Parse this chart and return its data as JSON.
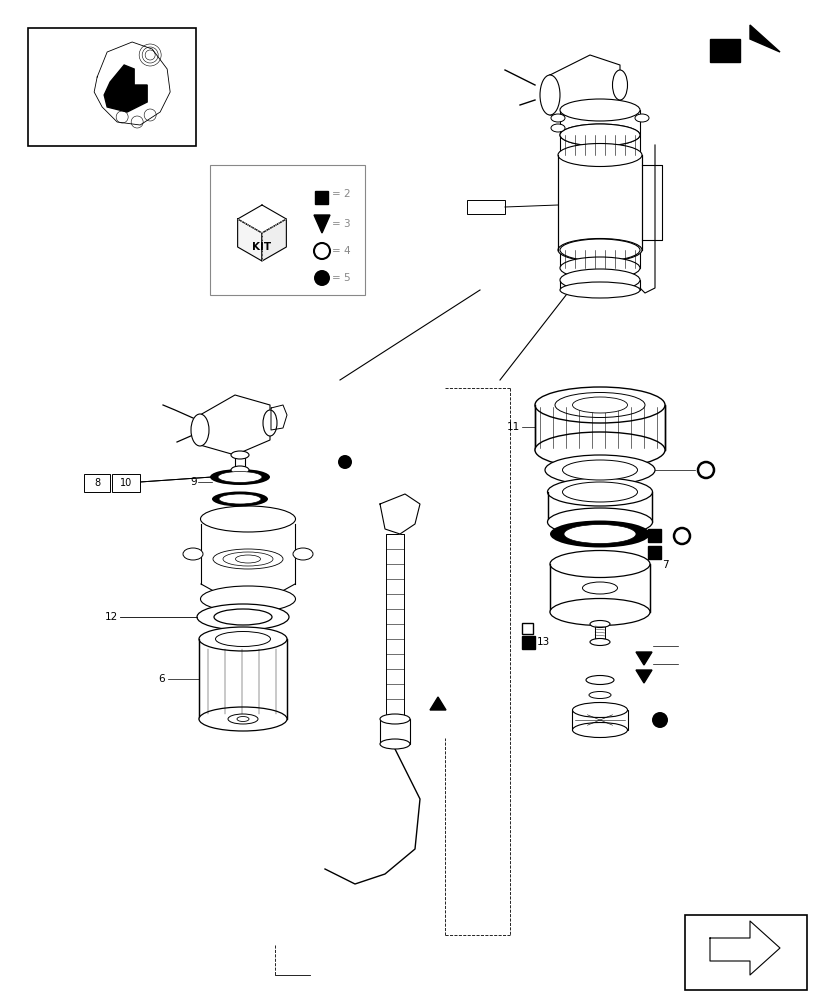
{
  "bg": "#ffffff",
  "lc": "#000000",
  "gc": "#888888",
  "fig_w": 8.28,
  "fig_h": 10.0,
  "dpi": 100
}
